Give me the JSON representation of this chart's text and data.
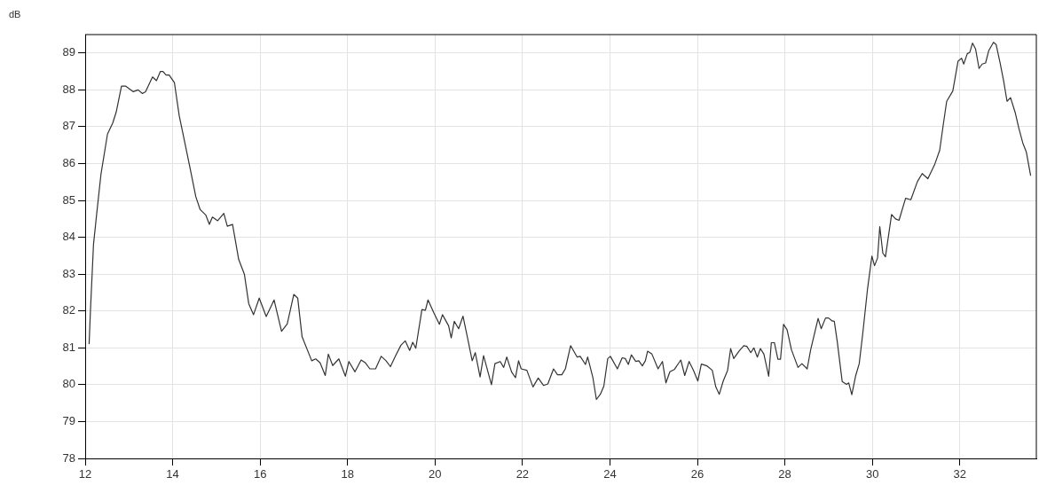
{
  "chart_data": {
    "type": "line",
    "ylabel": "dB",
    "xlim": [
      12,
      33.75
    ],
    "ylim": [
      78,
      89.5
    ],
    "xticks": [
      12,
      14,
      16,
      18,
      20,
      22,
      24,
      26,
      28,
      30,
      32
    ],
    "yticks": [
      78,
      79,
      80,
      81,
      82,
      83,
      84,
      85,
      86,
      87,
      88,
      89
    ],
    "grid": true,
    "legend": false,
    "marker": "none",
    "line_style": "solid",
    "series": [
      {
        "color": "#333333",
        "x": [
          12.09,
          12.12,
          12.19,
          12.26,
          12.36,
          12.51,
          12.63,
          12.71,
          12.83,
          12.93,
          13.1,
          13.21,
          13.31,
          13.38,
          13.54,
          13.63,
          13.72,
          13.78,
          13.85,
          13.92,
          14.04,
          14.15,
          14.29,
          14.42,
          14.53,
          14.63,
          14.76,
          14.84,
          14.91,
          15.03,
          15.17,
          15.25,
          15.37,
          15.51,
          15.64,
          15.74,
          15.85,
          15.98,
          16.14,
          16.32,
          16.49,
          16.62,
          16.77,
          16.86,
          16.96,
          17.18,
          17.27,
          17.37,
          17.49,
          17.56,
          17.66,
          17.8,
          17.95,
          18.03,
          18.17,
          18.31,
          18.41,
          18.51,
          18.64,
          18.77,
          18.88,
          18.98,
          19.1,
          19.22,
          19.32,
          19.42,
          19.49,
          19.56,
          19.7,
          19.78,
          19.84,
          19.97,
          20.1,
          20.17,
          20.31,
          20.37,
          20.44,
          20.54,
          20.64,
          20.75,
          20.85,
          20.92,
          21.03,
          21.11,
          21.29,
          21.37,
          21.49,
          21.57,
          21.64,
          21.75,
          21.84,
          21.91,
          21.97,
          22.1,
          22.24,
          22.36,
          22.48,
          22.58,
          22.71,
          22.8,
          22.9,
          22.98,
          23.1,
          23.25,
          23.32,
          23.44,
          23.49,
          23.61,
          23.69,
          23.78,
          23.86,
          23.95,
          24.01,
          24.17,
          24.28,
          24.35,
          24.42,
          24.49,
          24.59,
          24.66,
          24.74,
          24.81,
          24.86,
          24.96,
          25.1,
          25.2,
          25.28,
          25.37,
          25.47,
          25.62,
          25.71,
          25.81,
          25.91,
          26.01,
          26.09,
          26.22,
          26.34,
          26.42,
          26.5,
          26.59,
          26.69,
          26.76,
          26.83,
          26.95,
          27.06,
          27.13,
          27.22,
          27.29,
          27.37,
          27.44,
          27.52,
          27.63,
          27.69,
          27.76,
          27.84,
          27.9,
          27.97,
          28.05,
          28.15,
          28.3,
          28.39,
          28.51,
          28.59,
          28.76,
          28.83,
          28.93,
          29.0,
          29.08,
          29.13,
          29.2,
          29.31,
          29.41,
          29.46,
          29.53,
          29.62,
          29.7,
          29.78,
          29.89,
          29.99,
          30.05,
          30.12,
          30.17,
          30.24,
          30.3,
          30.44,
          30.53,
          30.61,
          30.76,
          30.88,
          31.03,
          31.14,
          31.27,
          31.43,
          31.54,
          31.62,
          31.7,
          31.84,
          31.96,
          32.04,
          32.09,
          32.17,
          32.23,
          32.29,
          32.36,
          32.44,
          32.51,
          32.59,
          32.66,
          32.77,
          32.83,
          32.92,
          33.0,
          33.08,
          33.16,
          33.27,
          33.35,
          33.44,
          33.52,
          33.62
        ],
        "values": [
          81.1,
          82.0,
          83.8,
          84.6,
          85.7,
          86.8,
          87.1,
          87.4,
          88.1,
          88.1,
          87.95,
          88.0,
          87.9,
          87.95,
          88.35,
          88.25,
          88.5,
          88.5,
          88.4,
          88.4,
          88.2,
          87.3,
          86.5,
          85.75,
          85.1,
          84.75,
          84.6,
          84.35,
          84.55,
          84.45,
          84.65,
          84.3,
          84.35,
          83.4,
          83.0,
          82.2,
          81.9,
          82.35,
          81.85,
          82.3,
          81.45,
          81.65,
          82.45,
          82.35,
          81.3,
          80.65,
          80.7,
          80.6,
          80.25,
          80.83,
          80.52,
          80.7,
          80.23,
          80.63,
          80.35,
          80.67,
          80.59,
          80.43,
          80.43,
          80.77,
          80.65,
          80.49,
          80.79,
          81.07,
          81.19,
          80.93,
          81.15,
          80.99,
          82.04,
          82.02,
          82.3,
          81.96,
          81.64,
          81.9,
          81.6,
          81.27,
          81.72,
          81.52,
          81.86,
          81.23,
          80.65,
          80.87,
          80.21,
          80.79,
          80.0,
          80.57,
          80.63,
          80.47,
          80.75,
          80.35,
          80.19,
          80.65,
          80.43,
          80.39,
          79.94,
          80.18,
          79.98,
          80.02,
          80.43,
          80.27,
          80.27,
          80.43,
          81.06,
          80.75,
          80.77,
          80.55,
          80.75,
          80.19,
          79.6,
          79.74,
          79.96,
          80.71,
          80.77,
          80.43,
          80.73,
          80.71,
          80.55,
          80.81,
          80.63,
          80.65,
          80.51,
          80.65,
          80.91,
          80.83,
          80.43,
          80.63,
          80.05,
          80.35,
          80.41,
          80.67,
          80.25,
          80.63,
          80.39,
          80.1,
          80.56,
          80.51,
          80.39,
          79.94,
          79.74,
          80.1,
          80.39,
          80.98,
          80.71,
          80.91,
          81.06,
          81.04,
          80.87,
          81.0,
          80.75,
          80.98,
          80.83,
          80.23,
          81.14,
          81.14,
          80.69,
          80.69,
          81.64,
          81.49,
          80.95,
          80.47,
          80.57,
          80.43,
          80.95,
          81.8,
          81.52,
          81.81,
          81.81,
          81.73,
          81.72,
          81.15,
          80.09,
          80.01,
          80.05,
          79.73,
          80.25,
          80.57,
          81.38,
          82.6,
          83.49,
          83.23,
          83.44,
          84.29,
          83.57,
          83.47,
          84.62,
          84.5,
          84.46,
          85.06,
          85.02,
          85.51,
          85.73,
          85.59,
          85.99,
          86.36,
          87.04,
          87.69,
          87.97,
          88.78,
          88.86,
          88.7,
          88.98,
          89.02,
          89.27,
          89.11,
          88.58,
          88.7,
          88.73,
          89.06,
          89.29,
          89.23,
          88.74,
          88.26,
          87.69,
          87.79,
          87.37,
          86.96,
          86.56,
          86.32,
          85.67
        ]
      }
    ]
  }
}
